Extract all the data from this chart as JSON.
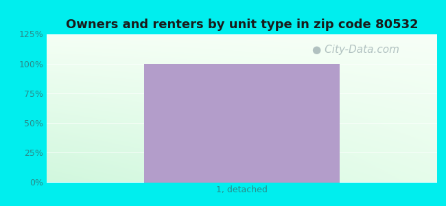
{
  "title": "Owners and renters by unit type in zip code 80532",
  "categories": [
    "1, detached"
  ],
  "values": [
    100
  ],
  "bar_color": "#b39dca",
  "ylim": [
    0,
    125
  ],
  "yticks": [
    0,
    25,
    50,
    75,
    100,
    125
  ],
  "ytick_labels": [
    "0%",
    "25%",
    "50%",
    "75%",
    "100%",
    "125%"
  ],
  "title_fontsize": 13,
  "tick_color": "#2a8a8a",
  "bg_outer_color": "#00eeee",
  "watermark": "City-Data.com",
  "watermark_color": "#aabbbb",
  "watermark_fontsize": 11,
  "grad_tl": [
    0.96,
    1.0,
    0.96
  ],
  "grad_tr": [
    0.97,
    1.0,
    0.97
  ],
  "grad_bl": [
    0.82,
    0.97,
    0.87
  ],
  "grad_br": [
    0.9,
    0.99,
    0.92
  ]
}
